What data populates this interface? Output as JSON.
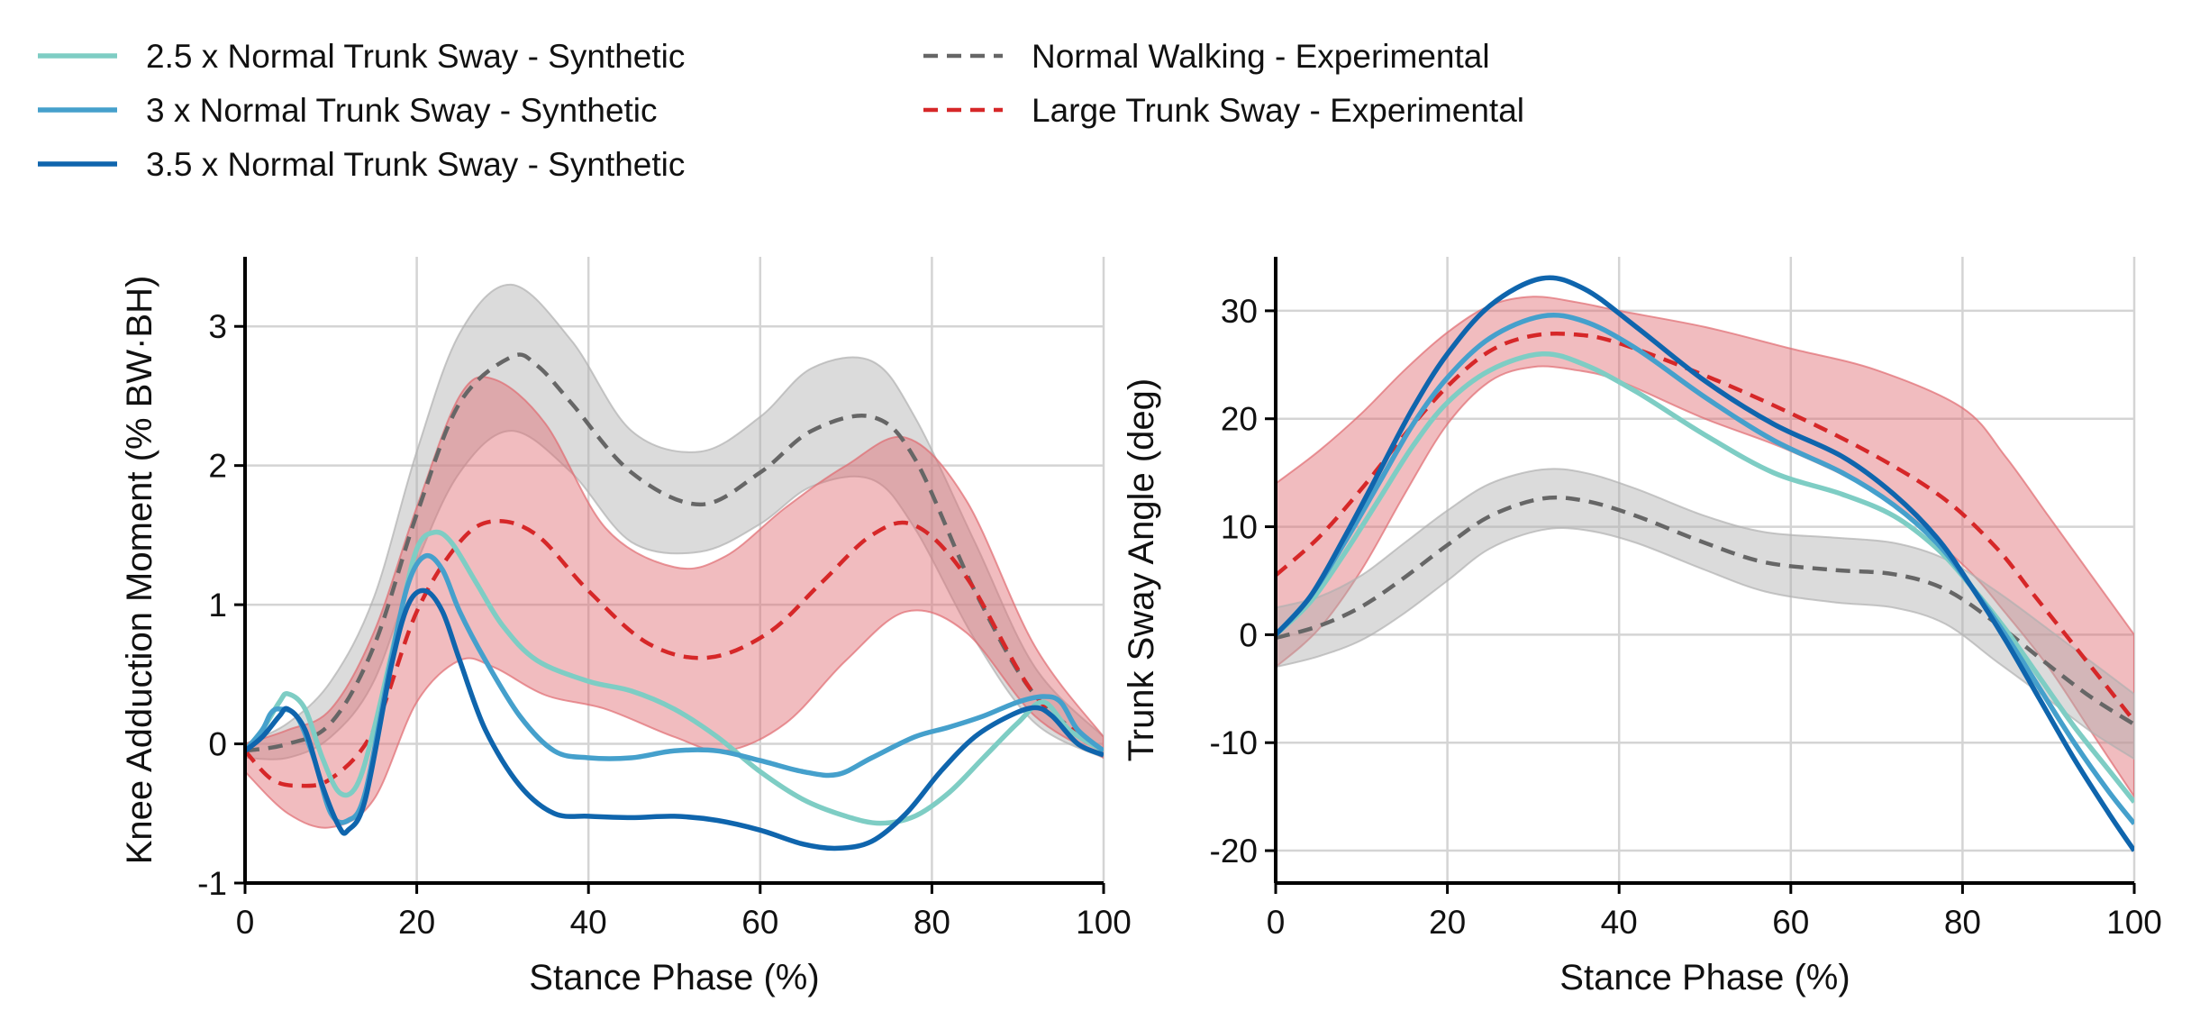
{
  "legend": {
    "items": [
      {
        "label": "2.5 x Normal Trunk Sway - Synthetic",
        "color": "#7ecdc4",
        "dash": false
      },
      {
        "label": "3 x Normal Trunk Sway - Synthetic",
        "color": "#45a0cc",
        "dash": false
      },
      {
        "label": "3.5 x Normal Trunk Sway - Synthetic",
        "color": "#0f65ad",
        "dash": false
      },
      {
        "label": "Normal Walking - Experimental",
        "color": "#666666",
        "dash": true
      },
      {
        "label": "Large Trunk Sway - Experimental",
        "color": "#d62728",
        "dash": true
      }
    ]
  },
  "chart_data": [
    {
      "type": "line",
      "title": "",
      "xlabel": "Stance Phase (%)",
      "ylabel": "Knee Adduction Moment (% BW·BH)",
      "xlim": [
        0,
        100
      ],
      "ylim": [
        -1,
        3.5
      ],
      "xticks": [
        0,
        20,
        40,
        60,
        80,
        100
      ],
      "xtick_labels": [
        "0",
        "20",
        "40",
        "60",
        "80",
        "100"
      ],
      "yticks": [
        -1,
        0,
        1,
        2,
        3
      ],
      "ytick_labels": [
        "-1",
        "0",
        "1",
        "2",
        "3"
      ],
      "grid": true,
      "bands": [
        {
          "name": "Normal Walking - Experimental",
          "color": "#b0b0b0",
          "x": [
            0,
            5,
            10,
            15,
            20,
            25,
            31,
            38,
            45,
            53,
            60,
            66,
            73,
            78,
            85,
            92,
            100
          ],
          "upper": [
            0.0,
            0.15,
            0.45,
            1.05,
            2.1,
            2.95,
            3.3,
            2.9,
            2.25,
            2.1,
            2.35,
            2.7,
            2.75,
            2.35,
            1.45,
            0.55,
            0.05
          ],
          "lower": [
            -0.1,
            -0.1,
            0.05,
            0.45,
            1.3,
            1.95,
            2.25,
            1.95,
            1.45,
            1.38,
            1.58,
            1.85,
            1.9,
            1.55,
            0.75,
            0.15,
            -0.1
          ]
        },
        {
          "name": "Large Trunk Sway - Experimental",
          "color": "#e06b70",
          "x": [
            0,
            5,
            10,
            15,
            20,
            25,
            29,
            35,
            42,
            50,
            56,
            63,
            70,
            77,
            84,
            92,
            100
          ],
          "upper": [
            0.0,
            0.1,
            0.25,
            0.8,
            1.7,
            2.5,
            2.62,
            2.3,
            1.55,
            1.27,
            1.35,
            1.7,
            2.0,
            2.2,
            1.75,
            0.7,
            0.05
          ],
          "lower": [
            -0.2,
            -0.5,
            -0.6,
            -0.4,
            0.3,
            0.6,
            0.55,
            0.35,
            0.25,
            0.05,
            -0.05,
            0.15,
            0.6,
            0.95,
            0.8,
            0.2,
            -0.1
          ]
        }
      ],
      "series": [
        {
          "name": "Normal Walking - Experimental",
          "color": "#666666",
          "dash": true,
          "x": [
            0,
            5,
            10,
            15,
            20,
            25,
            31,
            34,
            38,
            45,
            53,
            60,
            66,
            73,
            78,
            85,
            92,
            100
          ],
          "values": [
            -0.05,
            0.0,
            0.15,
            0.7,
            1.65,
            2.45,
            2.78,
            2.72,
            2.45,
            1.95,
            1.72,
            1.95,
            2.25,
            2.35,
            2.05,
            1.1,
            0.35,
            -0.05
          ]
        },
        {
          "name": "Large Trunk Sway - Experimental",
          "color": "#d62728",
          "dash": true,
          "x": [
            0,
            3,
            6,
            10,
            15,
            20,
            25,
            29,
            34,
            40,
            47,
            54,
            61,
            67,
            73,
            78,
            84,
            92,
            100
          ],
          "values": [
            -0.05,
            -0.25,
            -0.3,
            -0.25,
            0.1,
            0.95,
            1.45,
            1.6,
            1.5,
            1.1,
            0.72,
            0.62,
            0.8,
            1.15,
            1.5,
            1.57,
            1.2,
            0.35,
            -0.05
          ]
        },
        {
          "name": "2.5 x Normal Trunk Sway - Synthetic",
          "color": "#7ecdc4",
          "dash": false,
          "x": [
            0,
            2,
            4,
            5,
            7,
            9,
            11,
            13,
            15,
            18,
            20,
            22,
            24,
            27,
            30,
            34,
            40,
            45,
            50,
            55,
            60,
            65,
            70,
            74,
            78,
            82,
            86,
            90,
            93,
            96,
            100
          ],
          "values": [
            -0.05,
            0.1,
            0.3,
            0.36,
            0.25,
            -0.1,
            -0.35,
            -0.3,
            0.1,
            0.9,
            1.4,
            1.52,
            1.45,
            1.15,
            0.85,
            0.6,
            0.45,
            0.38,
            0.25,
            0.05,
            -0.2,
            -0.4,
            -0.52,
            -0.57,
            -0.52,
            -0.35,
            -0.1,
            0.15,
            0.3,
            0.1,
            -0.05
          ]
        },
        {
          "name": "3 x Normal Trunk Sway - Synthetic",
          "color": "#45a0cc",
          "dash": false,
          "x": [
            0,
            2,
            3,
            4,
            6,
            8,
            10,
            12,
            14,
            17,
            19,
            21,
            23,
            25,
            28,
            32,
            36,
            40,
            45,
            50,
            55,
            60,
            65,
            69,
            73,
            78,
            82,
            86,
            90,
            93,
            95,
            97,
            100
          ],
          "values": [
            -0.05,
            0.1,
            0.22,
            0.25,
            0.2,
            -0.1,
            -0.5,
            -0.55,
            -0.35,
            0.6,
            1.15,
            1.35,
            1.25,
            0.95,
            0.6,
            0.2,
            -0.05,
            -0.1,
            -0.1,
            -0.05,
            -0.05,
            -0.12,
            -0.2,
            -0.22,
            -0.1,
            0.05,
            0.12,
            0.2,
            0.3,
            0.34,
            0.3,
            0.1,
            -0.05
          ]
        },
        {
          "name": "3.5 x Normal Trunk Sway - Synthetic",
          "color": "#0f65ad",
          "dash": false,
          "x": [
            0,
            2,
            4,
            5,
            7,
            9,
            11,
            12,
            14,
            17,
            19,
            21,
            23,
            25,
            28,
            32,
            36,
            40,
            45,
            50,
            55,
            60,
            65,
            69,
            73,
            77,
            81,
            85,
            89,
            92,
            94,
            97,
            100
          ],
          "values": [
            -0.05,
            0.05,
            0.2,
            0.25,
            0.1,
            -0.3,
            -0.6,
            -0.62,
            -0.4,
            0.55,
            1.0,
            1.1,
            0.95,
            0.6,
            0.1,
            -0.3,
            -0.5,
            -0.52,
            -0.53,
            -0.52,
            -0.55,
            -0.62,
            -0.72,
            -0.75,
            -0.7,
            -0.5,
            -0.2,
            0.05,
            0.2,
            0.26,
            0.2,
            0.0,
            -0.08
          ]
        }
      ]
    },
    {
      "type": "line",
      "title": "",
      "xlabel": "Stance Phase (%)",
      "ylabel": "Trunk Sway Angle (deg)",
      "xlim": [
        0,
        100
      ],
      "ylim": [
        -23,
        35
      ],
      "xticks": [
        0,
        20,
        40,
        60,
        80,
        100
      ],
      "xtick_labels": [
        "0",
        "20",
        "40",
        "60",
        "80",
        "100"
      ],
      "yticks": [
        -20,
        -10,
        0,
        10,
        20,
        30
      ],
      "ytick_labels": [
        "-20",
        "-10",
        "0",
        "10",
        "20",
        "30"
      ],
      "grid": true,
      "bands": [
        {
          "name": "Large Trunk Sway - Experimental",
          "color": "#e06b70",
          "x": [
            0,
            5,
            10,
            15,
            20,
            25,
            30,
            35,
            40,
            50,
            60,
            70,
            80,
            85,
            90,
            95,
            100
          ],
          "upper": [
            14.0,
            17.0,
            20.5,
            24.5,
            28.0,
            30.5,
            31.3,
            30.8,
            30.0,
            28.5,
            26.5,
            24.5,
            21.0,
            16.5,
            11.0,
            5.5,
            0.0
          ],
          "lower": [
            -3.0,
            0.5,
            6.0,
            13.0,
            19.5,
            23.5,
            24.8,
            24.5,
            23.5,
            20.0,
            17.0,
            13.0,
            6.5,
            2.0,
            -3.0,
            -9.0,
            -15.0
          ]
        },
        {
          "name": "Normal Walking - Experimental",
          "color": "#b0b0b0",
          "x": [
            0,
            5,
            10,
            15,
            20,
            25,
            31,
            36,
            42,
            50,
            57,
            65,
            72,
            78,
            84,
            90,
            95,
            100
          ],
          "upper": [
            2.5,
            3.5,
            5.5,
            8.5,
            11.5,
            14.0,
            15.3,
            15.0,
            13.5,
            11.0,
            9.5,
            9.0,
            8.5,
            7.0,
            4.0,
            0.5,
            -2.5,
            -5.5
          ],
          "lower": [
            -3.0,
            -2.0,
            -0.5,
            2.0,
            5.0,
            8.0,
            9.7,
            9.7,
            8.5,
            6.0,
            4.0,
            3.0,
            2.5,
            1.0,
            -2.5,
            -6.0,
            -9.0,
            -11.5
          ]
        }
      ],
      "series": [
        {
          "name": "Normal Walking - Experimental",
          "color": "#666666",
          "dash": true,
          "x": [
            0,
            5,
            10,
            15,
            20,
            25,
            31,
            36,
            42,
            50,
            57,
            65,
            72,
            78,
            84,
            90,
            95,
            100
          ],
          "values": [
            -0.3,
            0.8,
            2.6,
            5.3,
            8.3,
            11.0,
            12.6,
            12.4,
            11.0,
            8.5,
            6.7,
            6.0,
            5.6,
            4.2,
            1.0,
            -2.8,
            -5.8,
            -8.3
          ]
        },
        {
          "name": "Large Trunk Sway - Experimental",
          "color": "#d62728",
          "dash": true,
          "x": [
            0,
            5,
            10,
            15,
            20,
            25,
            30,
            35,
            40,
            50,
            60,
            70,
            78,
            84,
            88,
            92,
            96,
            100
          ],
          "values": [
            5.5,
            9.0,
            13.5,
            18.5,
            23.0,
            26.3,
            27.7,
            27.8,
            27.0,
            24.0,
            20.5,
            16.5,
            12.5,
            8.0,
            4.0,
            0.0,
            -4.0,
            -8.0
          ]
        },
        {
          "name": "2.5 x Normal Trunk Sway - Synthetic",
          "color": "#7ecdc4",
          "dash": false,
          "x": [
            0,
            4,
            8,
            12,
            16,
            20,
            25,
            31,
            36,
            42,
            50,
            58,
            66,
            72,
            77,
            81,
            85,
            89,
            93,
            97,
            100
          ],
          "values": [
            0.0,
            3.0,
            7.5,
            12.5,
            17.5,
            21.5,
            24.5,
            26.0,
            25.0,
            22.5,
            18.5,
            15.0,
            13.0,
            11.0,
            8.0,
            4.5,
            0.5,
            -4.0,
            -8.5,
            -12.5,
            -15.5
          ]
        },
        {
          "name": "3 x Normal Trunk Sway - Synthetic",
          "color": "#45a0cc",
          "dash": false,
          "x": [
            0,
            4,
            8,
            12,
            16,
            20,
            25,
            31,
            36,
            42,
            50,
            58,
            66,
            72,
            77,
            81,
            85,
            89,
            93,
            97,
            100
          ],
          "values": [
            0.0,
            3.5,
            8.5,
            14.0,
            19.5,
            23.8,
            27.5,
            29.5,
            29.0,
            26.5,
            22.0,
            18.0,
            15.0,
            12.0,
            8.5,
            4.5,
            0.0,
            -5.0,
            -10.0,
            -14.5,
            -17.5
          ]
        },
        {
          "name": "3.5 x Normal Trunk Sway - Synthetic",
          "color": "#0f65ad",
          "dash": false,
          "x": [
            0,
            4,
            8,
            12,
            16,
            20,
            25,
            31,
            36,
            42,
            50,
            58,
            66,
            72,
            77,
            81,
            85,
            89,
            93,
            97,
            100
          ],
          "values": [
            0.0,
            3.5,
            9.0,
            15.0,
            21.0,
            26.0,
            30.5,
            33.0,
            32.0,
            28.5,
            23.5,
            19.5,
            16.5,
            13.0,
            9.0,
            4.5,
            -0.5,
            -6.0,
            -11.5,
            -16.5,
            -20.0
          ]
        }
      ]
    }
  ]
}
